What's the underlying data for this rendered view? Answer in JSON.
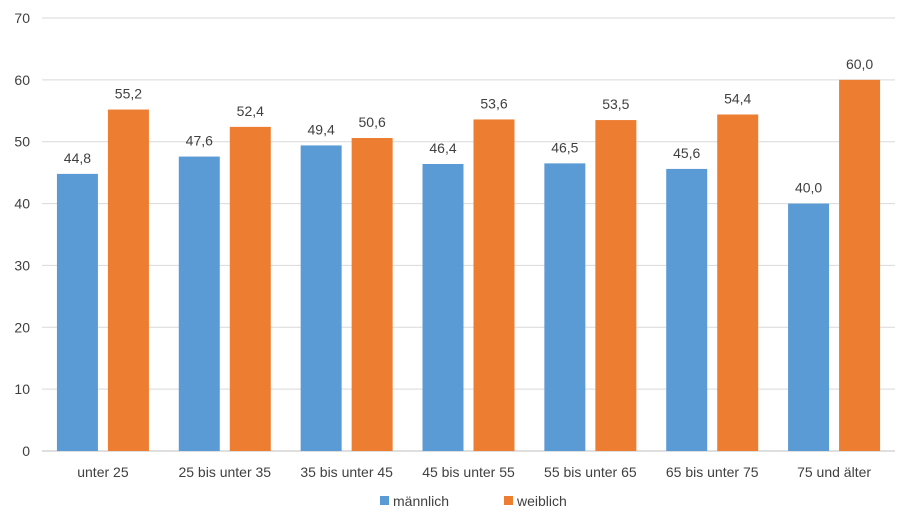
{
  "chart_data": {
    "type": "bar",
    "categories": [
      "unter 25",
      "25 bis unter 35",
      "35 bis unter 45",
      "45 bis unter 55",
      "55 bis unter 65",
      "65 bis unter 75",
      "75  und älter"
    ],
    "series": [
      {
        "name": "männlich",
        "values": [
          44.8,
          47.6,
          49.4,
          46.4,
          46.5,
          45.6,
          40.0
        ],
        "labels": [
          "44,8",
          "47,6",
          "49,4",
          "46,4",
          "46,5",
          "45,6",
          "40,0"
        ],
        "color": "#5b9bd5"
      },
      {
        "name": "weiblich",
        "values": [
          55.2,
          52.4,
          50.6,
          53.6,
          53.5,
          54.4,
          60.0
        ],
        "labels": [
          "55,2",
          "52,4",
          "50,6",
          "53,6",
          "53,5",
          "54,4",
          "60,0"
        ],
        "color": "#ed7d31"
      }
    ],
    "ylim": [
      0,
      70
    ],
    "yticks": [
      "0",
      "10",
      "20",
      "30",
      "40",
      "50",
      "60",
      "70"
    ],
    "grid": true,
    "legend": "bottom",
    "gridColor": "#d9d9d9"
  }
}
